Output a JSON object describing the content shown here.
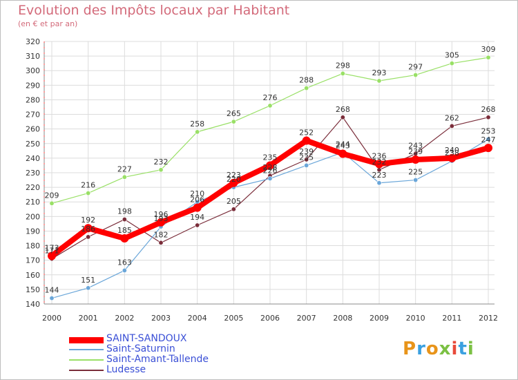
{
  "chart_data": {
    "type": "line",
    "title": "Evolution des Impôts locaux par Habitant",
    "subtitle": "(en € et par an)",
    "xlabel": "",
    "ylabel": "",
    "ylim": [
      140,
      320
    ],
    "ystep": 10,
    "grid": true,
    "categories": [
      "2000",
      "2001",
      "2002",
      "2003",
      "2004",
      "2005",
      "2006",
      "2007",
      "2008",
      "2009",
      "2010",
      "2011",
      "2012"
    ],
    "series": [
      {
        "name": "SAINT-SANDOUX",
        "color": "#ff0000",
        "values": [
          173,
          192,
          185,
          196,
          206,
          223,
          235,
          252,
          243,
          236,
          239,
          240,
          247
        ],
        "labels": [
          "173",
          "192",
          "185",
          "196",
          "206",
          "223",
          "235",
          "252",
          "243",
          "236",
          "239",
          "240",
          "247"
        ]
      },
      {
        "name": "Saint-Saturnin",
        "color": "#6aa6d9",
        "values": [
          144,
          151,
          163,
          193,
          210,
          220,
          226,
          235,
          244,
          223,
          225,
          238,
          253
        ],
        "labels": [
          "144",
          "151",
          "163",
          "193",
          "210",
          "220",
          "226",
          "235",
          "244",
          "223",
          "225",
          "238",
          "253"
        ]
      },
      {
        "name": "Saint-Amant-Tallende",
        "color": "#99e066",
        "values": [
          209,
          216,
          227,
          232,
          258,
          265,
          276,
          288,
          298,
          293,
          297,
          305,
          309
        ],
        "labels": [
          "209",
          "216",
          "227",
          "232",
          "258",
          "265",
          "276",
          "288",
          "298",
          "293",
          "297",
          "305",
          "309"
        ]
      },
      {
        "name": "Ludesse",
        "color": "#7a2d3a",
        "values": [
          171,
          186,
          198,
          182,
          194,
          205,
          228,
          239,
          268,
          232,
          243,
          262,
          268
        ],
        "labels": [
          "171",
          "186",
          "198",
          "182",
          "194",
          "205",
          "228",
          "239",
          "268",
          "232",
          "243",
          "262",
          "268"
        ]
      }
    ],
    "legend": "bottom-left"
  },
  "brand": {
    "letters": [
      "P",
      "r",
      "o",
      "x",
      "i",
      "t",
      "i"
    ],
    "colors": [
      "#e8941a",
      "#3aa0e0",
      "#e8941a",
      "#7bc043",
      "#e84a3a",
      "#3aa0e0",
      "#7bc043"
    ]
  }
}
